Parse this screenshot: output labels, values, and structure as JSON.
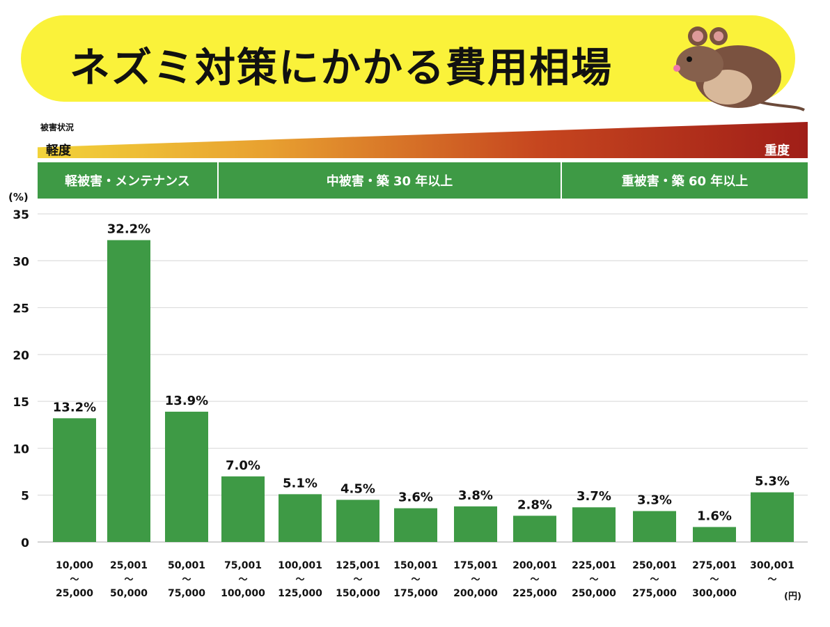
{
  "header": {
    "title": "ネズミ対策にかかる費用相場",
    "icon": "rat-illustration"
  },
  "severity": {
    "caption": "被害状況",
    "low": "軽度",
    "high": "重度",
    "colors": [
      "#f2d33a",
      "#a01e18"
    ]
  },
  "phases": [
    {
      "label": "軽被害・メンテナンス"
    },
    {
      "label": "中被害・築 30 年以上"
    },
    {
      "label": "重被害・築 60 年以上"
    }
  ],
  "chart_data": {
    "type": "bar",
    "ylabel": "(%)",
    "xunit": "(円)",
    "ylim": [
      0,
      35
    ],
    "yticks": [
      0,
      5,
      10,
      15,
      20,
      25,
      30,
      35
    ],
    "grid": true,
    "bar_color": "#3e9a45",
    "categories": [
      {
        "from": "10,000",
        "sep": "～",
        "to": "25,000"
      },
      {
        "from": "25,001",
        "sep": "～",
        "to": "50,000"
      },
      {
        "from": "50,001",
        "sep": "～",
        "to": "75,000"
      },
      {
        "from": "75,001",
        "sep": "～",
        "to": "100,000"
      },
      {
        "from": "100,001",
        "sep": "～",
        "to": "125,000"
      },
      {
        "from": "125,001",
        "sep": "～",
        "to": "150,000"
      },
      {
        "from": "150,001",
        "sep": "～",
        "to": "175,000"
      },
      {
        "from": "175,001",
        "sep": "～",
        "to": "200,000"
      },
      {
        "from": "200,001",
        "sep": "～",
        "to": "225,000"
      },
      {
        "from": "225,001",
        "sep": "～",
        "to": "250,000"
      },
      {
        "from": "250,001",
        "sep": "～",
        "to": "275,000"
      },
      {
        "from": "275,001",
        "sep": "～",
        "to": "300,000"
      },
      {
        "from": "300,001",
        "sep": "～",
        "to": ""
      }
    ],
    "values": [
      13.2,
      32.2,
      13.9,
      7.0,
      5.1,
      4.5,
      3.6,
      3.8,
      2.8,
      3.7,
      3.3,
      1.6,
      5.3
    ],
    "data_labels": [
      "13.2%",
      "32.2%",
      "13.9%",
      "7.0%",
      "5.1%",
      "4.5%",
      "3.6%",
      "3.8%",
      "2.8%",
      "3.7%",
      "3.3%",
      "1.6%",
      "5.3%"
    ]
  }
}
